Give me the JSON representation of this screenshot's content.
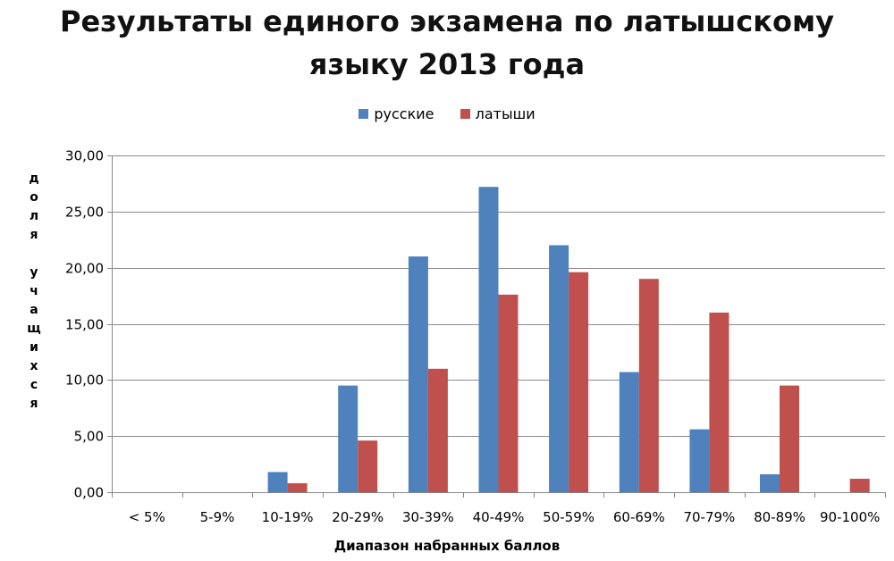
{
  "chart_data": {
    "type": "bar",
    "title_line1": "Результаты единого экзамена по латышскому",
    "title_line2": "языку 2013 года",
    "xlabel": "Диапазон набранных баллов",
    "ylabel": "доля учащихся",
    "ylim": [
      0,
      30
    ],
    "yticks": [
      "0,00",
      "5,00",
      "10,00",
      "15,00",
      "20,00",
      "25,00",
      "30,00"
    ],
    "ytick_values": [
      0,
      5,
      10,
      15,
      20,
      25,
      30
    ],
    "grid": true,
    "legend_position": "top",
    "categories": [
      "< 5%",
      "5-9%",
      "10-19%",
      "20-29%",
      "30-39%",
      "40-49%",
      "50-59%",
      "60-69%",
      "70-79%",
      "80-89%",
      "90-100%"
    ],
    "series": [
      {
        "name": "русские",
        "color": "#4F81BD",
        "values": [
          0,
          0,
          1.8,
          9.5,
          21.0,
          27.2,
          22.0,
          10.7,
          5.6,
          1.6,
          0
        ]
      },
      {
        "name": "латыши",
        "color": "#C0504D",
        "values": [
          0,
          0,
          0.8,
          4.6,
          11.0,
          17.6,
          19.6,
          19.0,
          16.0,
          9.5,
          1.2
        ]
      }
    ]
  }
}
